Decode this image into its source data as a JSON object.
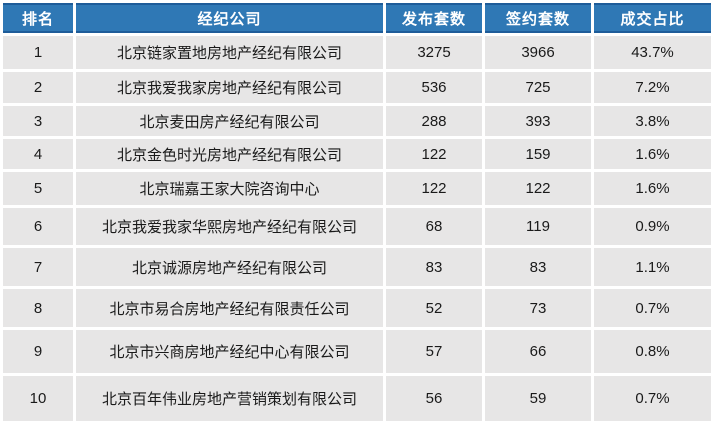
{
  "chart_data": {
    "type": "table",
    "columns": [
      "排名",
      "经纪公司",
      "发布套数",
      "签约套数",
      "成交占比"
    ],
    "rows": [
      [
        "1",
        "北京链家置地房地产经纪有限公司",
        "3275",
        "3966",
        "43.7%"
      ],
      [
        "2",
        "北京我爱我家房地产经纪有限公司",
        "536",
        "725",
        "7.2%"
      ],
      [
        "3",
        "北京麦田房产经纪有限公司",
        "288",
        "393",
        "3.8%"
      ],
      [
        "4",
        "北京金色时光房地产经纪有限公司",
        "122",
        "159",
        "1.6%"
      ],
      [
        "5",
        "北京瑞嘉王家大院咨询中心",
        "122",
        "122",
        "1.6%"
      ],
      [
        "6",
        "北京我爱我家华熙房地产经纪有限公司",
        "68",
        "119",
        "0.9%"
      ],
      [
        "7",
        "北京诚源房地产经纪有限公司",
        "83",
        "83",
        "1.1%"
      ],
      [
        "8",
        "北京市易合房地产经纪有限责任公司",
        "52",
        "73",
        "0.7%"
      ],
      [
        "9",
        "北京市兴商房地产经纪中心有限公司",
        "57",
        "66",
        "0.8%"
      ],
      [
        "10",
        "北京百年伟业房地产营销策划有限公司",
        "56",
        "59",
        "0.7%"
      ]
    ]
  },
  "colors": {
    "header_bg": "#2F78B5",
    "header_border": "#1E5C99",
    "header_text": "#FFFFFF",
    "row_bg": "#E7E6E6",
    "body_text": "#1A1A1A",
    "page_bg": "#FFFFFF"
  }
}
